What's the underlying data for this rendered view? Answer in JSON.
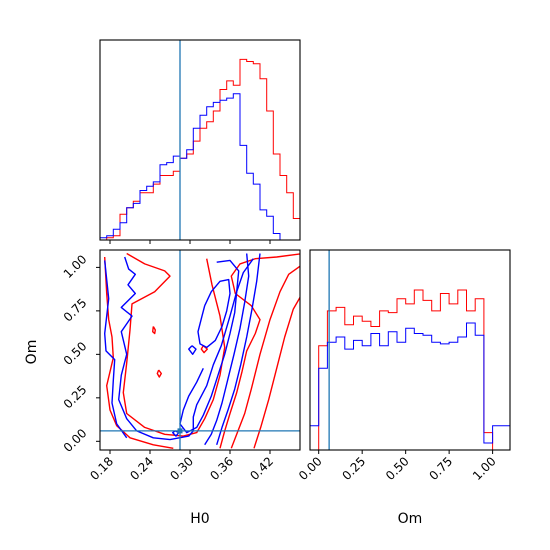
{
  "colors": {
    "series_red": "#ff0000",
    "series_blue": "#0000ff",
    "truth": "#1f77b4"
  },
  "chart_data": {
    "type": "corner",
    "parameters": [
      "H0",
      "Om"
    ],
    "xlabel_H0": "H0",
    "xlabel_Om": "Om",
    "ylabel_Om": "Om",
    "truth": {
      "H0": 0.285,
      "Om": 0.06
    },
    "axes": {
      "H0": {
        "lim": [
          0.165,
          0.465
        ],
        "ticks": [
          0.18,
          0.24,
          0.3,
          0.36,
          0.42
        ],
        "tick_labels": [
          "0.18",
          "0.24",
          "0.30",
          "0.36",
          "0.42"
        ]
      },
      "Om": {
        "lim": [
          -0.05,
          1.1
        ],
        "ticks": [
          0.0,
          0.25,
          0.5,
          0.75,
          1.0
        ],
        "tick_labels": [
          "0.00",
          "0.25",
          "0.50",
          "0.75",
          "1.00"
        ]
      }
    },
    "hist_H0": {
      "bin_edges": [
        0.165,
        0.175,
        0.185,
        0.195,
        0.205,
        0.215,
        0.225,
        0.235,
        0.245,
        0.255,
        0.265,
        0.275,
        0.285,
        0.295,
        0.305,
        0.315,
        0.325,
        0.335,
        0.345,
        0.355,
        0.365,
        0.375,
        0.385,
        0.395,
        0.405,
        0.415,
        0.425,
        0.435,
        0.445,
        0.455,
        0.465
      ],
      "series": [
        {
          "name": "red",
          "color": "#ff0000",
          "values": [
            0,
            0.01,
            0.02,
            0.12,
            0.15,
            0.18,
            0.22,
            0.22,
            0.26,
            0.3,
            0.3,
            0.32,
            0.38,
            0.4,
            0.46,
            0.52,
            0.55,
            0.6,
            0.7,
            0.74,
            0.72,
            0.84,
            0.83,
            0.82,
            0.75,
            0.6,
            0.4,
            0.3,
            0.22,
            0.1
          ]
        },
        {
          "name": "blue",
          "color": "#0000ff",
          "values": [
            0.01,
            0.02,
            0.05,
            0.08,
            0.15,
            0.17,
            0.23,
            0.25,
            0.27,
            0.35,
            0.36,
            0.39,
            0.38,
            0.42,
            0.52,
            0.58,
            0.62,
            0.64,
            0.65,
            0.66,
            0.68,
            0.44,
            0.31,
            0.26,
            0.14,
            0.11,
            0.03,
            0,
            0,
            0
          ]
        }
      ]
    },
    "hist_Om": {
      "bin_edges": [
        -0.05,
        0.0,
        0.05,
        0.1,
        0.15,
        0.2,
        0.25,
        0.3,
        0.35,
        0.4,
        0.45,
        0.5,
        0.55,
        0.6,
        0.65,
        0.7,
        0.75,
        0.8,
        0.85,
        0.9,
        0.95,
        1.0,
        1.05,
        1.1
      ],
      "series": [
        {
          "name": "red",
          "color": "#ff0000",
          "values": [
            0,
            0.6,
            0.8,
            0.82,
            0.72,
            0.77,
            0.74,
            0.71,
            0.8,
            0.79,
            0.87,
            0.84,
            0.92,
            0.86,
            0.8,
            0.9,
            0.84,
            0.92,
            0.8,
            0.87,
            0.1,
            0,
            0
          ]
        },
        {
          "name": "blue",
          "color": "#0000ff",
          "values": [
            0.14,
            0.47,
            0.62,
            0.65,
            0.58,
            0.63,
            0.6,
            0.67,
            0.6,
            0.68,
            0.62,
            0.7,
            0.67,
            0.66,
            0.62,
            0.61,
            0.62,
            0.65,
            0.73,
            0.66,
            0.04,
            0.14,
            0.14
          ]
        }
      ]
    },
    "contours": [
      {
        "name": "red",
        "color": "#ff0000",
        "level": 1,
        "points": [
          [
            0.205,
            1.08
          ],
          [
            0.232,
            1.02
          ],
          [
            0.262,
            0.98
          ],
          [
            0.27,
            0.95
          ],
          [
            0.247,
            0.86
          ],
          [
            0.213,
            0.79
          ],
          [
            0.21,
            0.64
          ],
          [
            0.205,
            0.45
          ],
          [
            0.2,
            0.28
          ],
          [
            0.205,
            0.16
          ],
          [
            0.232,
            0.08
          ],
          [
            0.262,
            0.04
          ],
          [
            0.29,
            0.03
          ],
          [
            0.31,
            0.05
          ],
          [
            0.322,
            0.13
          ],
          [
            0.335,
            0.24
          ],
          [
            0.345,
            0.38
          ],
          [
            0.352,
            0.54
          ],
          [
            0.345,
            0.72
          ],
          [
            0.333,
            0.9
          ],
          [
            0.325,
            1.05
          ]
        ]
      },
      {
        "name": "red",
        "color": "#ff0000",
        "level": 2,
        "points": [
          [
            0.172,
            1.06
          ],
          [
            0.175,
            0.85
          ],
          [
            0.178,
            0.7
          ],
          [
            0.183,
            0.6
          ],
          [
            0.185,
            0.48
          ],
          [
            0.175,
            0.32
          ],
          [
            0.18,
            0.18
          ],
          [
            0.19,
            0.09
          ],
          [
            0.21,
            0.02
          ],
          [
            0.245,
            -0.02
          ],
          [
            0.275,
            -0.04
          ]
        ]
      },
      {
        "name": "red",
        "color": "#ff0000",
        "level": 3,
        "points": [
          [
            0.47,
            1.02
          ],
          [
            0.448,
            0.96
          ],
          [
            0.435,
            0.86
          ],
          [
            0.42,
            0.7
          ],
          [
            0.405,
            0.5
          ],
          [
            0.392,
            0.3
          ],
          [
            0.382,
            0.16
          ],
          [
            0.37,
            0.04
          ],
          [
            0.362,
            -0.04
          ]
        ]
      },
      {
        "name": "red",
        "color": "#ff0000",
        "level": 4,
        "points": [
          [
            0.47,
            0.86
          ],
          [
            0.455,
            0.76
          ],
          [
            0.442,
            0.6
          ],
          [
            0.43,
            0.42
          ],
          [
            0.418,
            0.24
          ],
          [
            0.406,
            0.08
          ],
          [
            0.396,
            -0.04
          ]
        ]
      },
      {
        "name": "red",
        "color": "#ff0000",
        "level": 5,
        "points": [
          [
            0.47,
            1.08
          ],
          [
            0.43,
            1.06
          ],
          [
            0.398,
            1.05
          ],
          [
            0.375,
            1.02
          ],
          [
            0.362,
            0.95
          ],
          [
            0.368,
            0.85
          ],
          [
            0.392,
            0.78
          ],
          [
            0.405,
            0.7
          ],
          [
            0.398,
            0.62
          ],
          [
            0.385,
            0.52
          ],
          [
            0.378,
            0.4
          ],
          [
            0.37,
            0.28
          ],
          [
            0.36,
            0.16
          ],
          [
            0.352,
            0.06
          ],
          [
            0.345,
            -0.04
          ]
        ]
      },
      {
        "name": "red",
        "color": "#ff0000",
        "level": 6,
        "points": [
          [
            0.245,
            0.66
          ],
          [
            0.248,
            0.64
          ],
          [
            0.247,
            0.62
          ],
          [
            0.244,
            0.63
          ],
          [
            0.245,
            0.66
          ]
        ]
      },
      {
        "name": "red",
        "color": "#ff0000",
        "level": 7,
        "points": [
          [
            0.253,
            0.41
          ],
          [
            0.257,
            0.39
          ],
          [
            0.254,
            0.37
          ],
          [
            0.251,
            0.39
          ],
          [
            0.253,
            0.41
          ]
        ]
      },
      {
        "name": "red",
        "color": "#ff0000",
        "level": 8,
        "points": [
          [
            0.32,
            0.55
          ],
          [
            0.326,
            0.53
          ],
          [
            0.321,
            0.51
          ],
          [
            0.317,
            0.53
          ],
          [
            0.32,
            0.55
          ]
        ]
      },
      {
        "name": "blue",
        "color": "#0000ff",
        "level": 1,
        "points": [
          [
            0.202,
            1.06
          ],
          [
            0.208,
            0.99
          ],
          [
            0.218,
            0.96
          ],
          [
            0.207,
            0.9
          ],
          [
            0.218,
            0.85
          ],
          [
            0.197,
            0.77
          ],
          [
            0.213,
            0.72
          ],
          [
            0.197,
            0.63
          ],
          [
            0.205,
            0.5
          ],
          [
            0.197,
            0.38
          ],
          [
            0.193,
            0.24
          ],
          [
            0.205,
            0.13
          ],
          [
            0.22,
            0.06
          ],
          [
            0.245,
            0.02
          ],
          [
            0.27,
            0.01
          ],
          [
            0.298,
            0.03
          ],
          [
            0.305,
            0.06
          ],
          [
            0.305,
            0.14
          ],
          [
            0.31,
            0.21
          ],
          [
            0.325,
            0.32
          ],
          [
            0.335,
            0.44
          ],
          [
            0.347,
            0.55
          ],
          [
            0.36,
            0.72
          ],
          [
            0.37,
            0.86
          ],
          [
            0.38,
            0.97
          ],
          [
            0.395,
            1.05
          ]
        ]
      },
      {
        "name": "blue",
        "color": "#0000ff",
        "level": 2,
        "points": [
          [
            0.172,
            1.04
          ],
          [
            0.178,
            0.82
          ],
          [
            0.172,
            0.62
          ],
          [
            0.174,
            0.52
          ],
          [
            0.187,
            0.47
          ],
          [
            0.185,
            0.35
          ],
          [
            0.183,
            0.22
          ],
          [
            0.19,
            0.1
          ],
          [
            0.205,
            0.02
          ]
        ]
      },
      {
        "name": "blue",
        "color": "#0000ff",
        "level": 3,
        "points": [
          [
            0.322,
            0.78
          ],
          [
            0.332,
            0.86
          ],
          [
            0.345,
            0.92
          ],
          [
            0.358,
            0.93
          ],
          [
            0.36,
            0.85
          ],
          [
            0.355,
            0.75
          ],
          [
            0.348,
            0.66
          ],
          [
            0.338,
            0.58
          ],
          [
            0.325,
            0.54
          ],
          [
            0.315,
            0.56
          ],
          [
            0.312,
            0.63
          ],
          [
            0.318,
            0.72
          ],
          [
            0.322,
            0.78
          ]
        ]
      },
      {
        "name": "blue",
        "color": "#0000ff",
        "level": 4,
        "points": [
          [
            0.34,
            1.03
          ],
          [
            0.36,
            1.04
          ],
          [
            0.373,
            0.98
          ],
          [
            0.37,
            0.86
          ],
          [
            0.367,
            0.74
          ],
          [
            0.36,
            0.62
          ],
          [
            0.352,
            0.5
          ],
          [
            0.342,
            0.38
          ],
          [
            0.332,
            0.26
          ],
          [
            0.32,
            0.15
          ],
          [
            0.31,
            0.08
          ],
          [
            0.295,
            0.05
          ],
          [
            0.285,
            0.1
          ],
          [
            0.29,
            0.18
          ],
          [
            0.298,
            0.26
          ],
          [
            0.31,
            0.34
          ],
          [
            0.32,
            0.42
          ]
        ]
      },
      {
        "name": "blue",
        "color": "#0000ff",
        "level": 5,
        "points": [
          [
            0.385,
            1.08
          ],
          [
            0.388,
            0.95
          ],
          [
            0.382,
            0.8
          ],
          [
            0.375,
            0.65
          ],
          [
            0.366,
            0.5
          ],
          [
            0.357,
            0.36
          ],
          [
            0.348,
            0.22
          ],
          [
            0.34,
            0.12
          ],
          [
            0.332,
            0.04
          ],
          [
            0.322,
            -0.02
          ]
        ]
      },
      {
        "name": "blue",
        "color": "#0000ff",
        "level": 6,
        "points": [
          [
            0.405,
            1.08
          ],
          [
            0.4,
            0.92
          ],
          [
            0.393,
            0.76
          ],
          [
            0.385,
            0.6
          ],
          [
            0.376,
            0.44
          ],
          [
            0.367,
            0.3
          ],
          [
            0.357,
            0.18
          ],
          [
            0.348,
            0.08
          ],
          [
            0.34,
            -0.02
          ]
        ]
      },
      {
        "name": "blue",
        "color": "#0000ff",
        "level": 7,
        "points": [
          [
            0.303,
            0.55
          ],
          [
            0.309,
            0.53
          ],
          [
            0.304,
            0.5
          ],
          [
            0.298,
            0.53
          ],
          [
            0.303,
            0.55
          ]
        ]
      },
      {
        "name": "blue",
        "color": "#0000ff",
        "level": 8,
        "points": [
          [
            0.278,
            0.06
          ],
          [
            0.283,
            0.05
          ],
          [
            0.279,
            0.03
          ],
          [
            0.274,
            0.05
          ],
          [
            0.278,
            0.06
          ]
        ]
      }
    ]
  }
}
